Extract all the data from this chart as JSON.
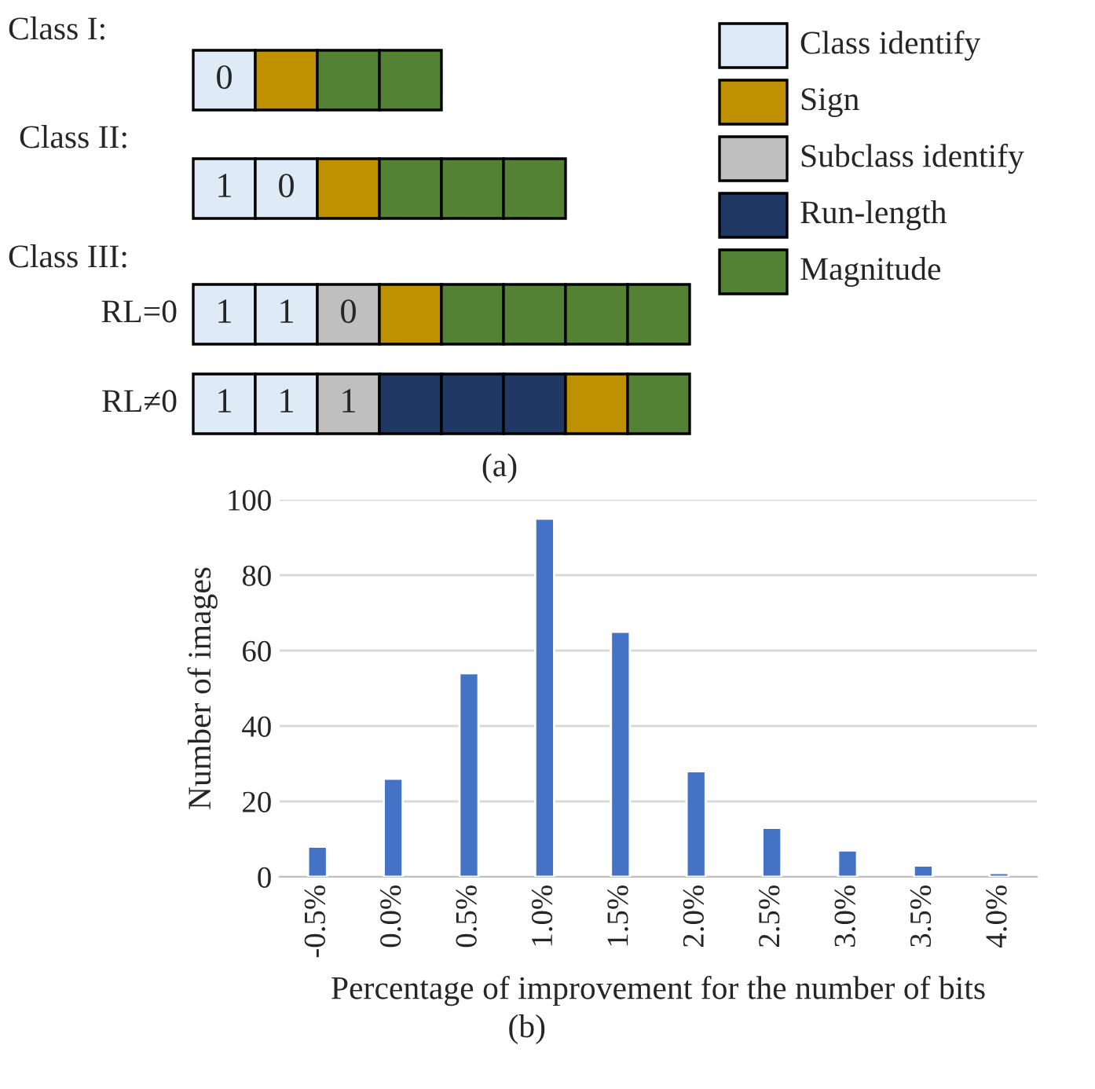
{
  "chart_data": [
    {
      "type": "other",
      "y_categories": [
        "Class I:",
        "Class II:",
        "RL=0",
        "RL≠0"
      ],
      "series": [
        {
          "name": "Class identify",
          "color": "#deebf7"
        },
        {
          "name": "Sign",
          "color": "#bf9000"
        },
        {
          "name": "Subclass identify",
          "color": "#bfbfbf"
        },
        {
          "name": "Run-length",
          "color": "#1f3864"
        },
        {
          "name": "Magnitude",
          "color": "#548235"
        }
      ],
      "colors": [
        [
          "#deebf7",
          "#bf9000",
          "#548235",
          "#548235"
        ],
        [
          "#deebf7",
          "#deebf7",
          "#bf9000",
          "#548235",
          "#548235",
          "#548235"
        ],
        [
          "#deebf7",
          "#deebf7",
          "#bfbfbf",
          "#bf9000",
          "#548235",
          "#548235",
          "#548235",
          "#548235"
        ],
        [
          "#deebf7",
          "#deebf7",
          "#bfbfbf",
          "#1f3864",
          "#1f3864",
          "#1f3864",
          "#bf9000",
          "#548235"
        ]
      ],
      "cell_labels": [
        [
          "0",
          null,
          null,
          null
        ],
        [
          "1",
          "0",
          null,
          null,
          null,
          null
        ],
        [
          "1",
          "1",
          "0",
          null,
          null,
          null,
          null,
          null
        ],
        [
          "1",
          "1",
          "1",
          null,
          null,
          null,
          null,
          null
        ]
      ],
      "annotations": [
        "Class III:",
        "(a)"
      ],
      "legend": "right"
    },
    {
      "type": "bar",
      "categories": [
        "-0.5%",
        "0.0%",
        "0.5%",
        "1.0%",
        "1.5%",
        "2.0%",
        "2.5%",
        "3.0%",
        "3.5%",
        "4.0%"
      ],
      "values": [
        8,
        26,
        54,
        95,
        65,
        28,
        13,
        7,
        3,
        1
      ],
      "color": "#4472c4",
      "ylim": [
        0,
        100
      ],
      "yticks": [
        0,
        20,
        40,
        60,
        80,
        100
      ],
      "xlabel": "Percentage of improvement for the number of bits",
      "ylabel": "Number of images",
      "annotations": [
        "(b)"
      ],
      "grid": "y"
    }
  ]
}
